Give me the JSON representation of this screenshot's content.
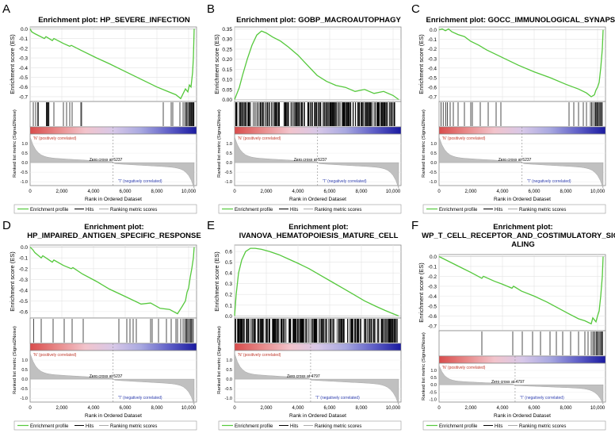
{
  "colors": {
    "curve": "#55c83c",
    "hits": "#000000",
    "metric_fill": "#c0c0c0",
    "pos_label": "#c0392b",
    "neg_label": "#2f3fb0",
    "heat_stops": [
      "#d94c4c",
      "#e88a8a",
      "#f2c4cc",
      "#d8c8e8",
      "#a8a8e0",
      "#6060c8",
      "#1a1aa0"
    ]
  },
  "chart_data": [
    {
      "type": "line",
      "panel_letter": "A",
      "title": "Enrichment plot: HP_SEVERE_INFECTION",
      "ylabel": "Enrichment score (ES)",
      "metric_ylabel": "Ranked list metric (Signal2Noise)",
      "xlabel": "Rank in Ordered Dataset",
      "pos_label": "'N' (positively correlated)",
      "neg_label": "'T' (negatively correlated)",
      "zero_cross": "Zero cross at 5237",
      "zero_cross_rank": 5237,
      "xlim": [
        0,
        10500
      ],
      "ylim": [
        -0.75,
        0.02
      ],
      "yticks": [
        "0.0",
        "-0.1",
        "-0.2",
        "-0.3",
        "-0.4",
        "-0.5",
        "-0.6",
        "-0.7"
      ],
      "ytick_values": [
        0.0,
        -0.1,
        -0.2,
        -0.3,
        -0.4,
        -0.5,
        -0.6,
        -0.7
      ],
      "metric_ylim": [
        -1.2,
        1.5
      ],
      "metric_yticks": [
        "1.0",
        "0.5",
        "0.0",
        "-0.5",
        "-1.0"
      ],
      "metric_ytick_values": [
        1.0,
        0.5,
        0.0,
        -0.5,
        -1.0
      ],
      "xticks": [
        "0",
        "2,000",
        "4,000",
        "6,000",
        "8,000",
        "10,000"
      ],
      "xtick_values": [
        0,
        2000,
        4000,
        6000,
        8000,
        10000
      ],
      "es_x": [
        0,
        100,
        300,
        900,
        1000,
        1400,
        1500,
        2100,
        2500,
        2600,
        3200,
        4200,
        5000,
        6000,
        7000,
        8000,
        8600,
        9200,
        9500,
        9800,
        9950,
        10050,
        10150,
        10250,
        10300,
        10350
      ],
      "es_y": [
        0.0,
        -0.03,
        -0.05,
        -0.1,
        -0.08,
        -0.12,
        -0.1,
        -0.15,
        -0.18,
        -0.17,
        -0.22,
        -0.3,
        -0.36,
        -0.44,
        -0.52,
        -0.6,
        -0.64,
        -0.68,
        -0.72,
        -0.62,
        -0.65,
        -0.58,
        -0.6,
        -0.45,
        -0.3,
        0.0
      ],
      "hits": [
        200,
        350,
        480,
        520,
        1020,
        1050,
        1080,
        1120,
        1150,
        1190,
        1500,
        2100,
        2300,
        2500,
        2650,
        3200,
        3250,
        8400,
        8900,
        9000,
        9450,
        9650,
        9750,
        9820,
        9880,
        9940,
        10000,
        10050,
        10080,
        10120,
        10160,
        10200,
        10240,
        10280,
        10310,
        10340
      ]
    },
    {
      "type": "line",
      "panel_letter": "B",
      "title": "Enrichment plot: GOBP_MACROAUTOPHAGY",
      "ylabel": "Enrichment score (ES)",
      "metric_ylabel": "Ranked list metric (Signal2Noise)",
      "xlabel": "Rank in Ordered Dataset",
      "pos_label": "'N' (positively correlated)",
      "neg_label": "'T' (negatively correlated)",
      "zero_cross": "Zero cross at 5237",
      "zero_cross_rank": 5237,
      "xlim": [
        0,
        10500
      ],
      "ylim": [
        -0.01,
        0.36
      ],
      "yticks": [
        "0.35",
        "0.30",
        "0.25",
        "0.20",
        "0.15",
        "0.10",
        "0.05",
        "0.00"
      ],
      "ytick_values": [
        0.35,
        0.3,
        0.25,
        0.2,
        0.15,
        0.1,
        0.05,
        0.0
      ],
      "metric_ylim": [
        -1.2,
        1.5
      ],
      "metric_yticks": [
        "1.0",
        "0.5",
        "0.0",
        "-0.5",
        "-1.0"
      ],
      "metric_ytick_values": [
        1.0,
        0.5,
        0.0,
        -0.5,
        -1.0
      ],
      "xticks": [
        "0",
        "2,000",
        "4,000",
        "6,000",
        "8,000",
        "10,000"
      ],
      "xtick_values": [
        0,
        2000,
        4000,
        6000,
        8000,
        10000
      ],
      "es_x": [
        0,
        100,
        300,
        500,
        800,
        1100,
        1400,
        1700,
        2000,
        2400,
        2900,
        3400,
        4000,
        4600,
        5200,
        5800,
        6400,
        7000,
        7600,
        8200,
        8800,
        9400,
        10000,
        10350
      ],
      "es_y": [
        0.0,
        0.02,
        0.06,
        0.12,
        0.2,
        0.27,
        0.32,
        0.34,
        0.33,
        0.31,
        0.29,
        0.26,
        0.22,
        0.17,
        0.12,
        0.09,
        0.07,
        0.06,
        0.04,
        0.05,
        0.03,
        0.04,
        0.02,
        0.0
      ],
      "hits_dense": true,
      "hits_range": [
        50,
        10300
      ],
      "hits_count": 300
    },
    {
      "type": "line",
      "panel_letter": "C",
      "title": "Enrichment plot: GOCC_IMMUNOLOGICAL_SYNAPSE",
      "ylabel": "Enrichment score (ES)",
      "metric_ylabel": "Ranked list metric (Signal2Noise)",
      "xlabel": "Rank in Ordered Dataset",
      "pos_label": "'N' (positively correlated)",
      "neg_label": "'T' (negatively correlated)",
      "zero_cross": "Zero cross at 5237",
      "zero_cross_rank": 5237,
      "xlim": [
        0,
        10500
      ],
      "ylim": [
        -0.75,
        0.03
      ],
      "yticks": [
        "0.0",
        "-0.1",
        "-0.2",
        "-0.3",
        "-0.4",
        "-0.5",
        "-0.6",
        "-0.7"
      ],
      "ytick_values": [
        0.0,
        -0.1,
        -0.2,
        -0.3,
        -0.4,
        -0.5,
        -0.6,
        -0.7
      ],
      "metric_ylim": [
        -1.2,
        1.5
      ],
      "metric_yticks": [
        "1.0",
        "0.5",
        "0.0",
        "-0.5",
        "-1.0"
      ],
      "metric_ytick_values": [
        1.0,
        0.5,
        0.0,
        -0.5,
        -1.0
      ],
      "xticks": [
        "0",
        "2,000",
        "4,000",
        "6,000",
        "8,000",
        "10,000"
      ],
      "xtick_values": [
        0,
        2000,
        4000,
        6000,
        8000,
        10000
      ],
      "es_x": [
        0,
        200,
        400,
        600,
        800,
        1200,
        1600,
        2000,
        2500,
        3000,
        4000,
        5000,
        6000,
        7000,
        8000,
        8800,
        9300,
        9600,
        9800,
        9900,
        10000,
        10100,
        10200,
        10300,
        10350
      ],
      "es_y": [
        0.0,
        0.01,
        -0.01,
        0.01,
        -0.02,
        -0.05,
        -0.07,
        -0.12,
        -0.16,
        -0.21,
        -0.29,
        -0.37,
        -0.44,
        -0.5,
        -0.57,
        -0.62,
        -0.66,
        -0.7,
        -0.68,
        -0.63,
        -0.6,
        -0.55,
        -0.4,
        -0.2,
        0.0
      ],
      "hits": [
        120,
        260,
        420,
        520,
        700,
        900,
        1200,
        1600,
        2000,
        2100,
        2600,
        3100,
        3600,
        3900,
        8200,
        8500,
        8800,
        9100,
        9300,
        9550,
        9620,
        9700,
        9800,
        9860,
        9900,
        9950,
        10000,
        10040,
        10100,
        10150,
        10200,
        10250,
        10300
      ]
    },
    {
      "type": "line",
      "panel_letter": "D",
      "title": "Enrichment plot:\nHP_IMPAIRED_ANTIGEN_SPECIFIC_RESPONSE",
      "title_lines": [
        "Enrichment plot:",
        "HP_IMPAIRED_ANTIGEN_SPECIFIC_RESPONSE"
      ],
      "ylabel": "Enrichment score (ES)",
      "metric_ylabel": "Ranked list metric (Signal2Noise)",
      "xlabel": "Rank in Ordered Dataset",
      "pos_label": "'N' (positively correlated)",
      "neg_label": "'T' (negatively correlated)",
      "zero_cross": "Zero cross at 5237",
      "zero_cross_rank": 5237,
      "xlim": [
        0,
        10500
      ],
      "ylim": [
        -0.66,
        0.02
      ],
      "yticks": [
        "0.0",
        "-0.1",
        "-0.2",
        "-0.3",
        "-0.4",
        "-0.5",
        "-0.6"
      ],
      "ytick_values": [
        0.0,
        -0.1,
        -0.2,
        -0.3,
        -0.4,
        -0.5,
        -0.6
      ],
      "metric_ylim": [
        -1.2,
        1.5
      ],
      "metric_yticks": [
        "1.0",
        "0.5",
        "0.0",
        "-0.5",
        "-1.0"
      ],
      "metric_ytick_values": [
        1.0,
        0.5,
        0.0,
        -0.5,
        -1.0
      ],
      "xticks": [
        "0",
        "2,000",
        "4,000",
        "6,000",
        "8,000",
        "10,000"
      ],
      "xtick_values": [
        0,
        2000,
        4000,
        6000,
        8000,
        10000
      ],
      "es_x": [
        0,
        150,
        300,
        700,
        800,
        1400,
        1500,
        2100,
        2600,
        2700,
        3300,
        4200,
        5000,
        6000,
        7000,
        7600,
        8200,
        8800,
        9300,
        9600,
        9800,
        9900,
        10000,
        10100,
        10200,
        10300,
        10350
      ],
      "es_y": [
        0.0,
        -0.02,
        -0.05,
        -0.1,
        -0.08,
        -0.14,
        -0.12,
        -0.17,
        -0.2,
        -0.19,
        -0.25,
        -0.32,
        -0.39,
        -0.46,
        -0.53,
        -0.52,
        -0.57,
        -0.58,
        -0.62,
        -0.55,
        -0.5,
        -0.42,
        -0.38,
        -0.28,
        -0.2,
        -0.1,
        0.0
      ],
      "hits": [
        220,
        700,
        1450,
        2150,
        2650,
        3350,
        5600,
        6100,
        6300,
        6500,
        6700,
        7600,
        7700,
        8100,
        8600,
        8900,
        9200,
        9300,
        9500,
        9650,
        9750,
        9820,
        9880,
        9940,
        10000,
        10060,
        10120,
        10180,
        10240,
        10300
      ]
    },
    {
      "type": "line",
      "panel_letter": "E",
      "title": "Enrichment plot:\nIVANOVA_HEMATOPOIESIS_MATURE_CELL",
      "title_lines": [
        "Enrichment plot:",
        "IVANOVA_HEMATOPOIESIS_MATURE_CELL"
      ],
      "ylabel": "Enrichment score (ES)",
      "metric_ylabel": "Ranked list metric (Signal2Noise)",
      "xlabel": "Rank in Ordered Dataset",
      "pos_label": "'N' (positively correlated)",
      "neg_label": "'T' (negatively correlated)",
      "zero_cross": "Zero cross at 4797",
      "zero_cross_rank": 4797,
      "xlim": [
        0,
        10500
      ],
      "ylim": [
        -0.02,
        0.66
      ],
      "yticks": [
        "0.6",
        "0.5",
        "0.4",
        "0.3",
        "0.2",
        "0.1",
        "0.0"
      ],
      "ytick_values": [
        0.6,
        0.5,
        0.4,
        0.3,
        0.2,
        0.1,
        0.0
      ],
      "metric_ylim": [
        -1.2,
        1.5
      ],
      "metric_yticks": [
        "1.0",
        "0.5",
        "0.0",
        "-0.5",
        "-1.0"
      ],
      "metric_ytick_values": [
        1.0,
        0.5,
        0.0,
        -0.5,
        -1.0
      ],
      "xticks": [
        "0",
        "2,000",
        "4,000",
        "6,000",
        "8,000",
        "10,000"
      ],
      "xtick_values": [
        0,
        2000,
        4000,
        6000,
        8000,
        10000
      ],
      "es_x": [
        0,
        100,
        250,
        450,
        700,
        1000,
        1300,
        1700,
        2200,
        2800,
        3400,
        4000,
        4700,
        5400,
        6100,
        6800,
        7500,
        8200,
        8900,
        9500,
        10000,
        10350
      ],
      "es_y": [
        0.0,
        0.2,
        0.4,
        0.52,
        0.6,
        0.63,
        0.63,
        0.62,
        0.6,
        0.57,
        0.53,
        0.49,
        0.44,
        0.38,
        0.32,
        0.26,
        0.2,
        0.14,
        0.09,
        0.05,
        0.02,
        0.0
      ],
      "hits_dense": true,
      "hits_range": [
        30,
        10300
      ],
      "hits_count": 320
    },
    {
      "type": "line",
      "panel_letter": "F",
      "title": "Enrichment plot:\nWP_T_CELL_RECEPTOR_AND_COSTIMULATORY_SIGN\nALING",
      "title_lines": [
        "Enrichment plot:",
        "WP_T_CELL_RECEPTOR_AND_COSTIMULATORY_SIGN",
        "ALING"
      ],
      "ylabel": "Enrichment score (ES)",
      "metric_ylabel": "Ranked list metric (Signal2Noise)",
      "xlabel": "Rank in Ordered Dataset",
      "pos_label": "'N' (positively correlated)",
      "neg_label": "'T' (negatively correlated)",
      "zero_cross": "Zero cross at 4797",
      "zero_cross_rank": 4797,
      "xlim": [
        0,
        10500
      ],
      "ylim": [
        -0.75,
        0.02
      ],
      "yticks": [
        "0.0",
        "-0.1",
        "-0.2",
        "-0.3",
        "-0.4",
        "-0.5",
        "-0.6",
        "-0.7"
      ],
      "ytick_values": [
        0.0,
        -0.1,
        -0.2,
        -0.3,
        -0.4,
        -0.5,
        -0.6,
        -0.7
      ],
      "metric_ylim": [
        -1.2,
        1.5
      ],
      "metric_yticks": [
        "1.0",
        "0.5",
        "0.0",
        "-0.5",
        "-1.0"
      ],
      "metric_ytick_values": [
        1.0,
        0.5,
        0.0,
        -0.5,
        -1.0
      ],
      "xticks": [
        "0",
        "2,000",
        "4,000",
        "6,000",
        "8,000",
        "10,000"
      ],
      "xtick_values": [
        0,
        2000,
        4000,
        6000,
        8000,
        10000
      ],
      "es_x": [
        0,
        500,
        1000,
        1500,
        2000,
        2700,
        2800,
        3500,
        4000,
        4600,
        4700,
        5200,
        6000,
        6800,
        7500,
        8200,
        8800,
        9200,
        9600,
        9700,
        9900,
        10000,
        10100,
        10200,
        10300,
        10350
      ],
      "es_y": [
        0.0,
        -0.04,
        -0.08,
        -0.12,
        -0.16,
        -0.22,
        -0.2,
        -0.25,
        -0.28,
        -0.32,
        -0.3,
        -0.35,
        -0.4,
        -0.46,
        -0.52,
        -0.58,
        -0.63,
        -0.65,
        -0.68,
        -0.62,
        -0.66,
        -0.6,
        -0.55,
        -0.4,
        -0.2,
        0.0
      ],
      "hits": [
        2700,
        4650,
        5250,
        5900,
        6400,
        7000,
        7400,
        7800,
        8300,
        8800,
        9200,
        9400,
        9600,
        9700,
        9780,
        9850,
        9920,
        9980,
        10040,
        10100,
        10160,
        10220,
        10280,
        10330
      ]
    }
  ],
  "legend": {
    "enrichment_profile": "Enrichment profile",
    "hits": "Hits",
    "ranking_metric_scores": "Ranking metric scores"
  }
}
